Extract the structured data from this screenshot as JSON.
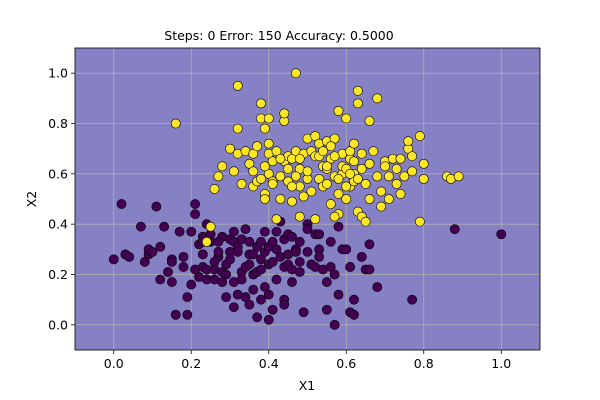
{
  "chart_data": {
    "type": "scatter",
    "title": "Steps: 0 Error: 150 Accuracy: 0.5000",
    "xlabel": "X1",
    "ylabel": "X2",
    "xlim": [
      -0.1,
      1.1
    ],
    "ylim": [
      -0.1,
      1.1
    ],
    "xticks": [
      "0.0",
      "0.2",
      "0.4",
      "0.6",
      "0.8",
      "1.0"
    ],
    "yticks": [
      "0.0",
      "0.2",
      "0.4",
      "0.6",
      "0.8",
      "1.0"
    ],
    "grid": true,
    "background_color": "#8581c4",
    "series": [
      {
        "color": "#440154",
        "points": [
          [
            0.0,
            0.26
          ],
          [
            0.02,
            0.48
          ],
          [
            0.03,
            0.28
          ],
          [
            0.04,
            0.27
          ],
          [
            0.07,
            0.39
          ],
          [
            0.08,
            0.25
          ],
          [
            0.09,
            0.28
          ],
          [
            0.09,
            0.3
          ],
          [
            0.1,
            0.29
          ],
          [
            0.11,
            0.47
          ],
          [
            0.12,
            0.31
          ],
          [
            0.12,
            0.18
          ],
          [
            0.13,
            0.39
          ],
          [
            0.14,
            0.21
          ],
          [
            0.15,
            0.26
          ],
          [
            0.15,
            0.25
          ],
          [
            0.16,
            0.04
          ],
          [
            0.17,
            0.37
          ],
          [
            0.18,
            0.23
          ],
          [
            0.18,
            0.27
          ],
          [
            0.19,
            0.11
          ],
          [
            0.19,
            0.04
          ],
          [
            0.2,
            0.37
          ],
          [
            0.2,
            0.16
          ],
          [
            0.21,
            0.48
          ],
          [
            0.21,
            0.44
          ],
          [
            0.21,
            0.22
          ],
          [
            0.22,
            0.32
          ],
          [
            0.22,
            0.19
          ],
          [
            0.23,
            0.35
          ],
          [
            0.23,
            0.23
          ],
          [
            0.23,
            0.33
          ],
          [
            0.24,
            0.18
          ],
          [
            0.24,
            0.22
          ],
          [
            0.24,
            0.4
          ],
          [
            0.25,
            0.33
          ],
          [
            0.25,
            0.36
          ],
          [
            0.26,
            0.18
          ],
          [
            0.26,
            0.22
          ],
          [
            0.27,
            0.27
          ],
          [
            0.27,
            0.29
          ],
          [
            0.28,
            0.21
          ],
          [
            0.28,
            0.17
          ],
          [
            0.29,
            0.24
          ],
          [
            0.29,
            0.2
          ],
          [
            0.29,
            0.11
          ],
          [
            0.3,
            0.34
          ],
          [
            0.3,
            0.29
          ],
          [
            0.3,
            0.26
          ],
          [
            0.31,
            0.33
          ],
          [
            0.31,
            0.17
          ],
          [
            0.31,
            0.07
          ],
          [
            0.32,
            0.31
          ],
          [
            0.32,
            0.29
          ],
          [
            0.32,
            0.12
          ],
          [
            0.33,
            0.34
          ],
          [
            0.33,
            0.21
          ],
          [
            0.33,
            0.18
          ],
          [
            0.34,
            0.23
          ],
          [
            0.34,
            0.11
          ],
          [
            0.35,
            0.33
          ],
          [
            0.35,
            0.28
          ],
          [
            0.35,
            0.24
          ],
          [
            0.36,
            0.2
          ],
          [
            0.36,
            0.14
          ],
          [
            0.37,
            0.31
          ],
          [
            0.37,
            0.21
          ],
          [
            0.37,
            0.03
          ],
          [
            0.38,
            0.33
          ],
          [
            0.38,
            0.26
          ],
          [
            0.38,
            0.22
          ],
          [
            0.39,
            0.29
          ],
          [
            0.39,
            0.15
          ],
          [
            0.4,
            0.31
          ],
          [
            0.4,
            0.24
          ],
          [
            0.4,
            0.12
          ],
          [
            0.41,
            0.33
          ],
          [
            0.41,
            0.25
          ],
          [
            0.41,
            0.06
          ],
          [
            0.42,
            0.3
          ],
          [
            0.42,
            0.18
          ],
          [
            0.43,
            0.41
          ],
          [
            0.43,
            0.27
          ],
          [
            0.44,
            0.34
          ],
          [
            0.44,
            0.23
          ],
          [
            0.44,
            0.1
          ],
          [
            0.45,
            0.36
          ],
          [
            0.45,
            0.24
          ],
          [
            0.46,
            0.35
          ],
          [
            0.46,
            0.22
          ],
          [
            0.46,
            0.17
          ],
          [
            0.47,
            0.3
          ],
          [
            0.47,
            0.29
          ],
          [
            0.48,
            0.33
          ],
          [
            0.48,
            0.21
          ],
          [
            0.49,
            0.05
          ],
          [
            0.5,
            0.4
          ],
          [
            0.5,
            0.29
          ],
          [
            0.5,
            0.38
          ],
          [
            0.51,
            0.24
          ],
          [
            0.52,
            0.36
          ],
          [
            0.52,
            0.23
          ],
          [
            0.53,
            0.36
          ],
          [
            0.53,
            0.3
          ],
          [
            0.54,
            0.22
          ],
          [
            0.55,
            0.17
          ],
          [
            0.55,
            0.06
          ],
          [
            0.56,
            0.33
          ],
          [
            0.56,
            0.23
          ],
          [
            0.57,
            0.0
          ],
          [
            0.57,
            0.2
          ],
          [
            0.58,
            0.39
          ],
          [
            0.58,
            0.12
          ],
          [
            0.59,
            0.3
          ],
          [
            0.6,
            0.3
          ],
          [
            0.61,
            0.23
          ],
          [
            0.61,
            0.05
          ],
          [
            0.62,
            0.1
          ],
          [
            0.62,
            0.04
          ],
          [
            0.64,
            0.27
          ],
          [
            0.65,
            0.22
          ],
          [
            0.66,
            0.22
          ],
          [
            0.66,
            0.32
          ],
          [
            0.68,
            0.15
          ],
          [
            0.77,
            0.1
          ],
          [
            0.88,
            0.38
          ],
          [
            1.0,
            0.36
          ],
          [
            0.28,
            0.35
          ],
          [
            0.34,
            0.38
          ],
          [
            0.36,
            0.28
          ],
          [
            0.39,
            0.37
          ],
          [
            0.42,
            0.37
          ],
          [
            0.26,
            0.25
          ],
          [
            0.35,
            0.08
          ],
          [
            0.4,
            0.02
          ],
          [
            0.44,
            0.08
          ],
          [
            0.15,
            0.17
          ],
          [
            0.23,
            0.28
          ],
          [
            0.27,
            0.33
          ],
          [
            0.31,
            0.37
          ],
          [
            0.48,
            0.25
          ],
          [
            0.53,
            0.27
          ],
          [
            0.45,
            0.28
          ],
          [
            0.38,
            0.1
          ]
        ]
      },
      {
        "color": "#fde725",
        "points": [
          [
            0.16,
            0.8
          ],
          [
            0.24,
            0.33
          ],
          [
            0.25,
            0.39
          ],
          [
            0.26,
            0.54
          ],
          [
            0.27,
            0.59
          ],
          [
            0.28,
            0.63
          ],
          [
            0.3,
            0.7
          ],
          [
            0.31,
            0.61
          ],
          [
            0.32,
            0.68
          ],
          [
            0.32,
            0.78
          ],
          [
            0.32,
            0.95
          ],
          [
            0.33,
            0.56
          ],
          [
            0.34,
            0.69
          ],
          [
            0.35,
            0.64
          ],
          [
            0.36,
            0.55
          ],
          [
            0.36,
            0.68
          ],
          [
            0.37,
            0.57
          ],
          [
            0.37,
            0.71
          ],
          [
            0.38,
            0.58
          ],
          [
            0.38,
            0.88
          ],
          [
            0.38,
            0.82
          ],
          [
            0.39,
            0.78
          ],
          [
            0.39,
            0.52
          ],
          [
            0.39,
            0.5
          ],
          [
            0.4,
            0.82
          ],
          [
            0.4,
            0.72
          ],
          [
            0.4,
            0.68
          ],
          [
            0.4,
            0.6
          ],
          [
            0.41,
            0.57
          ],
          [
            0.41,
            0.56
          ],
          [
            0.41,
            0.65
          ],
          [
            0.42,
            0.42
          ],
          [
            0.42,
            0.69
          ],
          [
            0.43,
            0.5
          ],
          [
            0.43,
            0.59
          ],
          [
            0.44,
            0.65
          ],
          [
            0.44,
            0.81
          ],
          [
            0.44,
            0.84
          ],
          [
            0.45,
            0.67
          ],
          [
            0.45,
            0.57
          ],
          [
            0.46,
            0.49
          ],
          [
            0.46,
            0.66
          ],
          [
            0.47,
            1.0
          ],
          [
            0.47,
            0.69
          ],
          [
            0.48,
            0.62
          ],
          [
            0.48,
            0.43
          ],
          [
            0.48,
            0.55
          ],
          [
            0.49,
            0.51
          ],
          [
            0.49,
            0.68
          ],
          [
            0.5,
            0.58
          ],
          [
            0.5,
            0.74
          ],
          [
            0.51,
            0.69
          ],
          [
            0.51,
            0.53
          ],
          [
            0.52,
            0.67
          ],
          [
            0.52,
            0.75
          ],
          [
            0.53,
            0.58
          ],
          [
            0.53,
            0.72
          ],
          [
            0.54,
            0.55
          ],
          [
            0.54,
            0.63
          ],
          [
            0.55,
            0.56
          ],
          [
            0.55,
            0.62
          ],
          [
            0.55,
            0.73
          ],
          [
            0.56,
            0.48
          ],
          [
            0.56,
            0.66
          ],
          [
            0.57,
            0.74
          ],
          [
            0.57,
            0.59
          ],
          [
            0.58,
            0.52
          ],
          [
            0.58,
            0.85
          ],
          [
            0.58,
            0.44
          ],
          [
            0.59,
            0.68
          ],
          [
            0.59,
            0.6
          ],
          [
            0.6,
            0.5
          ],
          [
            0.6,
            0.82
          ],
          [
            0.61,
            0.66
          ],
          [
            0.61,
            0.55
          ],
          [
            0.61,
            0.69
          ],
          [
            0.62,
            0.72
          ],
          [
            0.62,
            0.6
          ],
          [
            0.62,
            0.57
          ],
          [
            0.63,
            0.93
          ],
          [
            0.63,
            0.88
          ],
          [
            0.63,
            0.45
          ],
          [
            0.64,
            0.43
          ],
          [
            0.64,
            0.62
          ],
          [
            0.64,
            0.68
          ],
          [
            0.65,
            0.56
          ],
          [
            0.65,
            0.41
          ],
          [
            0.66,
            0.81
          ],
          [
            0.66,
            0.64
          ],
          [
            0.67,
            0.69
          ],
          [
            0.68,
            0.9
          ],
          [
            0.68,
            0.59
          ],
          [
            0.69,
            0.53
          ],
          [
            0.69,
            0.47
          ],
          [
            0.7,
            0.65
          ],
          [
            0.7,
            0.63
          ],
          [
            0.71,
            0.5
          ],
          [
            0.71,
            0.59
          ],
          [
            0.72,
            0.66
          ],
          [
            0.73,
            0.62
          ],
          [
            0.73,
            0.56
          ],
          [
            0.74,
            0.66
          ],
          [
            0.74,
            0.52
          ],
          [
            0.75,
            0.59
          ],
          [
            0.76,
            0.7
          ],
          [
            0.76,
            0.73
          ],
          [
            0.77,
            0.61
          ],
          [
            0.77,
            0.67
          ],
          [
            0.79,
            0.41
          ],
          [
            0.79,
            0.75
          ],
          [
            0.8,
            0.58
          ],
          [
            0.8,
            0.64
          ],
          [
            0.86,
            0.59
          ],
          [
            0.87,
            0.58
          ],
          [
            0.89,
            0.59
          ],
          [
            0.52,
            0.42
          ],
          [
            0.55,
            0.63
          ],
          [
            0.56,
            0.71
          ],
          [
            0.57,
            0.43
          ],
          [
            0.59,
            0.63
          ],
          [
            0.6,
            0.62
          ],
          [
            0.62,
            0.65
          ],
          [
            0.63,
            0.58
          ],
          [
            0.48,
            0.66
          ],
          [
            0.5,
            0.61
          ],
          [
            0.53,
            0.67
          ],
          [
            0.45,
            0.62
          ],
          [
            0.47,
            0.59
          ],
          [
            0.57,
            0.67
          ],
          [
            0.61,
            0.6
          ],
          [
            0.43,
            0.66
          ],
          [
            0.54,
            0.69
          ],
          [
            0.58,
            0.58
          ],
          [
            0.46,
            0.55
          ],
          [
            0.66,
            0.5
          ],
          [
            0.6,
            0.55
          ],
          [
            0.39,
            0.63
          ],
          [
            0.36,
            0.61
          ]
        ]
      }
    ]
  }
}
